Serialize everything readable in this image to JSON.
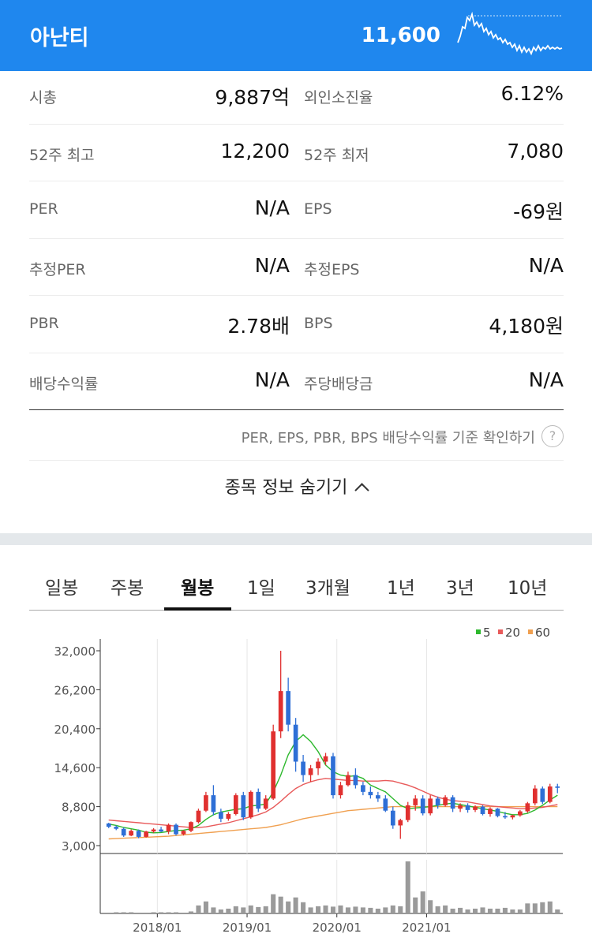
{
  "header": {
    "name": "아난티",
    "price": "11,600"
  },
  "info": [
    {
      "l_label": "시총",
      "l_value": "9,887억",
      "r_label": "외인소진율",
      "r_value": "6.12%"
    },
    {
      "l_label": "52주 최고",
      "l_value": "12,200",
      "r_label": "52주 최저",
      "r_value": "7,080"
    },
    {
      "l_label": "PER",
      "l_value": "N/A",
      "r_label": "EPS",
      "r_value": "-69원"
    },
    {
      "l_label": "추정PER",
      "l_value": "N/A",
      "r_label": "추정EPS",
      "r_value": "N/A"
    },
    {
      "l_label": "PBR",
      "l_value": "2.78배",
      "r_label": "BPS",
      "r_value": "4,180원"
    },
    {
      "l_label": "배당수익률",
      "l_value": "N/A",
      "r_label": "주당배당금",
      "r_value": "N/A"
    }
  ],
  "note": {
    "text": "PER, EPS, PBR, BPS 배당수익률 기준 확인하기",
    "help": "?"
  },
  "hide_label": "종목 정보 숨기기",
  "tabs": [
    {
      "label": "일봉"
    },
    {
      "label": "주봉"
    },
    {
      "label": "월봉"
    },
    {
      "label": "1일"
    },
    {
      "label": "3개월"
    },
    {
      "label": "1년"
    },
    {
      "label": "3년"
    },
    {
      "label": "10년"
    }
  ],
  "active_tab": "월봉",
  "colors": {
    "header_bg": "#1f87ee",
    "up": "#e0302f",
    "down": "#2e6fd6",
    "ma5": "#2db82d",
    "ma20": "#e85a5a",
    "ma60": "#f0a050",
    "volume": "#9a9a9a"
  },
  "chart_data": {
    "type": "candlestick",
    "legend": [
      {
        "name": "5",
        "color": "#2db82d"
      },
      {
        "name": "20",
        "color": "#e85a5a"
      },
      {
        "name": "60",
        "color": "#f0a050"
      }
    ],
    "y_ticks": [
      "32,000",
      "26,200",
      "20,400",
      "14,600",
      "8,800",
      "3,000"
    ],
    "ylim": [
      3000,
      32000
    ],
    "x_ticks": [
      "2018/01",
      "2019/01",
      "2020/01",
      "2021/01"
    ],
    "months_start": "2017/06",
    "candles": [
      [
        6300,
        6400,
        5600,
        5800
      ],
      [
        5800,
        6000,
        5300,
        5500
      ],
      [
        5500,
        5700,
        4300,
        4500
      ],
      [
        4500,
        5400,
        4400,
        5200
      ],
      [
        5200,
        5400,
        4100,
        4300
      ],
      [
        4300,
        5200,
        4200,
        5100
      ],
      [
        5100,
        5600,
        4900,
        5400
      ],
      [
        5400,
        5800,
        5000,
        5100
      ],
      [
        5100,
        6300,
        4700,
        6100
      ],
      [
        6100,
        6300,
        4500,
        4700
      ],
      [
        4700,
        5300,
        4500,
        5200
      ],
      [
        5200,
        6600,
        5000,
        6500
      ],
      [
        6500,
        8500,
        6300,
        8200
      ],
      [
        8200,
        11000,
        8000,
        10500
      ],
      [
        10500,
        12000,
        7500,
        8000
      ],
      [
        8000,
        8500,
        6500,
        7000
      ],
      [
        7000,
        8000,
        6700,
        7700
      ],
      [
        7700,
        10800,
        7500,
        10500
      ],
      [
        10500,
        11000,
        6800,
        7200
      ],
      [
        7200,
        11200,
        7000,
        11000
      ],
      [
        11000,
        11500,
        8000,
        8500
      ],
      [
        8500,
        10500,
        8300,
        10000
      ],
      [
        10000,
        21000,
        9800,
        20000
      ],
      [
        20000,
        32000,
        19000,
        26000
      ],
      [
        26000,
        28000,
        20000,
        21000
      ],
      [
        21000,
        22000,
        14000,
        15500
      ],
      [
        15500,
        16500,
        12500,
        13500
      ],
      [
        13500,
        15000,
        12500,
        14500
      ],
      [
        14500,
        16000,
        13500,
        15500
      ],
      [
        15500,
        16800,
        15000,
        16300
      ],
      [
        16300,
        16800,
        10000,
        10500
      ],
      [
        10500,
        12500,
        10000,
        12000
      ],
      [
        12000,
        14000,
        11800,
        13500
      ],
      [
        13500,
        14500,
        11500,
        12000
      ],
      [
        12000,
        12500,
        10500,
        11000
      ],
      [
        11000,
        11800,
        10000,
        10500
      ],
      [
        10500,
        11000,
        9500,
        10000
      ],
      [
        10000,
        10500,
        8000,
        8200
      ],
      [
        8200,
        8800,
        5500,
        6000
      ],
      [
        6000,
        7000,
        4000,
        6800
      ],
      [
        6800,
        9500,
        6500,
        9000
      ],
      [
        9000,
        10500,
        8200,
        10000
      ],
      [
        10000,
        10500,
        7500,
        7800
      ],
      [
        7800,
        10500,
        7500,
        10000
      ],
      [
        10000,
        10300,
        8500,
        9000
      ],
      [
        9000,
        10500,
        8800,
        10200
      ],
      [
        10200,
        10500,
        8000,
        8500
      ],
      [
        8500,
        9300,
        8000,
        9000
      ],
      [
        9000,
        9300,
        7900,
        8300
      ],
      [
        8300,
        9000,
        8000,
        8800
      ],
      [
        8800,
        9000,
        7500,
        7700
      ],
      [
        7700,
        8700,
        7300,
        8500
      ],
      [
        8500,
        8600,
        7200,
        7400
      ],
      [
        7400,
        8000,
        7000,
        7200
      ],
      [
        7200,
        7600,
        6900,
        7500
      ],
      [
        7500,
        8300,
        7300,
        8100
      ],
      [
        8100,
        9500,
        7900,
        9300
      ],
      [
        9300,
        12000,
        9000,
        11500
      ],
      [
        11500,
        11800,
        9200,
        9500
      ],
      [
        9500,
        12200,
        9300,
        11800
      ],
      [
        11800,
        12200,
        10800,
        11600
      ]
    ],
    "ma5": [
      6200,
      6000,
      5700,
      5500,
      5300,
      5000,
      4900,
      4950,
      5100,
      5250,
      5300,
      5500,
      6000,
      6900,
      7600,
      8000,
      8200,
      8400,
      8500,
      8900,
      9000,
      9200,
      11000,
      13500,
      16500,
      18500,
      19500,
      18500,
      17000,
      15000,
      14000,
      13500,
      13300,
      13400,
      13000,
      12000,
      11500,
      11000,
      10000,
      9000,
      8500,
      8600,
      8700,
      8800,
      9000,
      9200,
      9300,
      9100,
      8900,
      8700,
      8500,
      8300,
      8100,
      7800,
      7600,
      7600,
      7800,
      8300,
      9000,
      9800,
      10500
    ],
    "ma20": [
      6800,
      6700,
      6600,
      6500,
      6400,
      6300,
      6200,
      6100,
      6000,
      5900,
      5800,
      5700,
      5700,
      5800,
      6000,
      6200,
      6400,
      6700,
      7000,
      7300,
      7600,
      8000,
      8700,
      9600,
      10600,
      11500,
      12100,
      12500,
      12800,
      13000,
      12900,
      12800,
      12700,
      12700,
      12600,
      12600,
      12600,
      12700,
      12600,
      12300,
      12000,
      11600,
      11100,
      10600,
      10200,
      9900,
      9700,
      9600,
      9500,
      9300,
      9100,
      8900,
      8800,
      8700,
      8600,
      8500,
      8500,
      8600,
      8700,
      8900,
      9100
    ],
    "ma60": [
      4000,
      4050,
      4100,
      4150,
      4200,
      4250,
      4300,
      4350,
      4400,
      4500,
      4600,
      4700,
      4800,
      4900,
      5000,
      5100,
      5200,
      5300,
      5400,
      5500,
      5600,
      5700,
      5900,
      6100,
      6400,
      6700,
      7000,
      7200,
      7400,
      7600,
      7800,
      8000,
      8200,
      8300,
      8400,
      8500,
      8600,
      8700,
      8800,
      8800,
      8800,
      8800,
      8800,
      8800,
      8800,
      8800,
      8800,
      8800,
      8800,
      8800,
      8800,
      8800,
      8800,
      8800,
      8800,
      8800,
      8800,
      8800,
      8800,
      8800,
      8800
    ],
    "volume": [
      2,
      3,
      3,
      3,
      2,
      2,
      3,
      3,
      3,
      3,
      2,
      5,
      20,
      30,
      15,
      10,
      12,
      18,
      15,
      20,
      16,
      18,
      48,
      42,
      30,
      40,
      28,
      15,
      18,
      20,
      17,
      20,
      15,
      17,
      15,
      14,
      12,
      15,
      20,
      18,
      130,
      40,
      55,
      33,
      18,
      20,
      12,
      14,
      10,
      12,
      15,
      12,
      12,
      14,
      10,
      10,
      25,
      25,
      28,
      30,
      10
    ]
  }
}
